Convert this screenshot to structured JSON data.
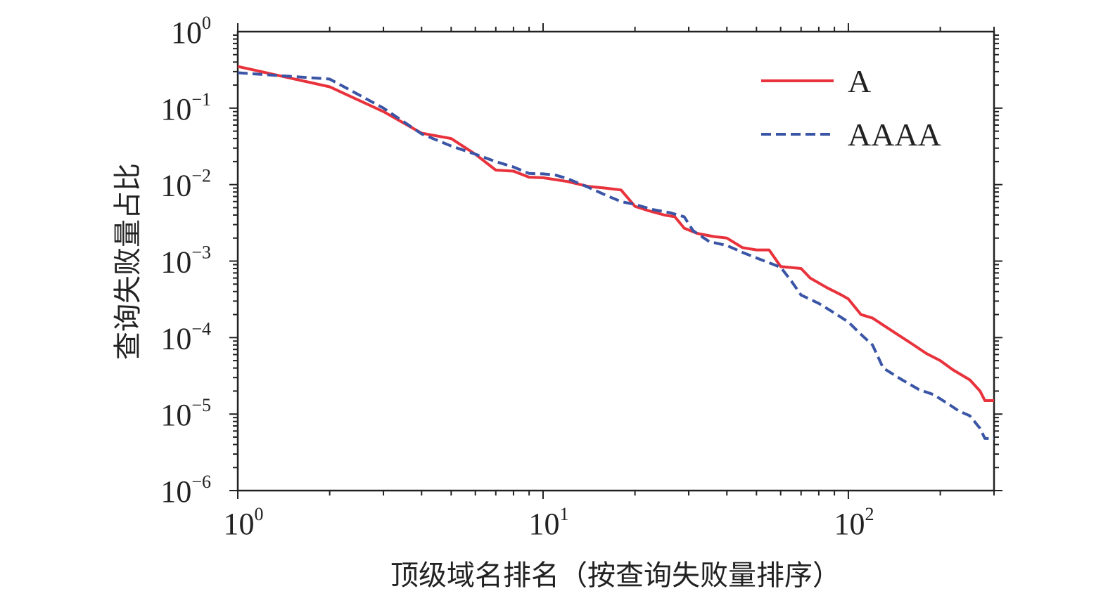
{
  "chart_data": {
    "type": "line",
    "xlabel": "顶级域名排名（按查询失败量排序）",
    "ylabel": "查询失败量占比",
    "xscale": "log",
    "yscale": "log",
    "xlim": [
      1,
      300
    ],
    "ylim": [
      1e-06,
      1
    ],
    "x_ticks": [
      {
        "base": "10",
        "exp": "0",
        "value": 1
      },
      {
        "base": "10",
        "exp": "1",
        "value": 10
      },
      {
        "base": "10",
        "exp": "2",
        "value": 100
      }
    ],
    "y_ticks": [
      {
        "base": "10",
        "exp": "0",
        "value": 1
      },
      {
        "base": "10",
        "exp": "−1",
        "value": 0.1
      },
      {
        "base": "10",
        "exp": "−2",
        "value": 0.01
      },
      {
        "base": "10",
        "exp": "−3",
        "value": 0.001
      },
      {
        "base": "10",
        "exp": "−4",
        "value": 0.0001
      },
      {
        "base": "10",
        "exp": "−5",
        "value": 1e-05
      },
      {
        "base": "10",
        "exp": "−6",
        "value": 1e-06
      }
    ],
    "grid": false,
    "legend_position": "top-right",
    "series": [
      {
        "name": "A",
        "color": "#e8323c",
        "style": "solid",
        "points": [
          [
            1,
            0.35
          ],
          [
            2,
            0.19
          ],
          [
            3,
            0.09
          ],
          [
            4,
            0.047
          ],
          [
            5,
            0.04
          ],
          [
            6,
            0.025
          ],
          [
            7,
            0.0155
          ],
          [
            8,
            0.015
          ],
          [
            9,
            0.0125
          ],
          [
            10,
            0.0123
          ],
          [
            12,
            0.011
          ],
          [
            14,
            0.0095
          ],
          [
            16,
            0.009
          ],
          [
            18,
            0.0085
          ],
          [
            20,
            0.0052
          ],
          [
            22,
            0.0046
          ],
          [
            25,
            0.004
          ],
          [
            27,
            0.0038
          ],
          [
            29,
            0.0027
          ],
          [
            32,
            0.0023
          ],
          [
            36,
            0.0021
          ],
          [
            40,
            0.002
          ],
          [
            45,
            0.0015
          ],
          [
            50,
            0.0014
          ],
          [
            55,
            0.0014
          ],
          [
            60,
            0.00085
          ],
          [
            70,
            0.0008
          ],
          [
            75,
            0.0006
          ],
          [
            85,
            0.00045
          ],
          [
            95,
            0.00036
          ],
          [
            100,
            0.00032
          ],
          [
            110,
            0.0002
          ],
          [
            120,
            0.00018
          ],
          [
            140,
            0.00012
          ],
          [
            160,
            8.5e-05
          ],
          [
            180,
            6.2e-05
          ],
          [
            200,
            5e-05
          ],
          [
            220,
            3.8e-05
          ],
          [
            250,
            2.8e-05
          ],
          [
            270,
            2e-05
          ],
          [
            280,
            1.5e-05
          ],
          [
            300,
            1.5e-05
          ]
        ]
      },
      {
        "name": "AAAA",
        "color": "#3a55a5",
        "style": "dashed",
        "points": [
          [
            1,
            0.29
          ],
          [
            2,
            0.24
          ],
          [
            3,
            0.1
          ],
          [
            4,
            0.046
          ],
          [
            5,
            0.032
          ],
          [
            6,
            0.025
          ],
          [
            7,
            0.02
          ],
          [
            8,
            0.017
          ],
          [
            9,
            0.014
          ],
          [
            10,
            0.0138
          ],
          [
            11,
            0.0133
          ],
          [
            12,
            0.012
          ],
          [
            14,
            0.0093
          ],
          [
            16,
            0.0073
          ],
          [
            18,
            0.006
          ],
          [
            20,
            0.0055
          ],
          [
            23,
            0.0047
          ],
          [
            26,
            0.0043
          ],
          [
            29,
            0.0038
          ],
          [
            31,
            0.0025
          ],
          [
            35,
            0.0018
          ],
          [
            40,
            0.0016
          ],
          [
            45,
            0.0013
          ],
          [
            50,
            0.0011
          ],
          [
            55,
            0.00095
          ],
          [
            60,
            0.00083
          ],
          [
            65,
            0.00055
          ],
          [
            70,
            0.00036
          ],
          [
            80,
            0.00028
          ],
          [
            90,
            0.00021
          ],
          [
            100,
            0.00016
          ],
          [
            110,
            0.00011
          ],
          [
            120,
            8e-05
          ],
          [
            130,
            4e-05
          ],
          [
            150,
            2.8e-05
          ],
          [
            170,
            2.1e-05
          ],
          [
            190,
            1.8e-05
          ],
          [
            210,
            1.4e-05
          ],
          [
            230,
            1.1e-05
          ],
          [
            250,
            9.5e-06
          ],
          [
            270,
            6.5e-06
          ],
          [
            280,
            4.8e-06
          ],
          [
            300,
            4.8e-06
          ]
        ]
      }
    ]
  }
}
